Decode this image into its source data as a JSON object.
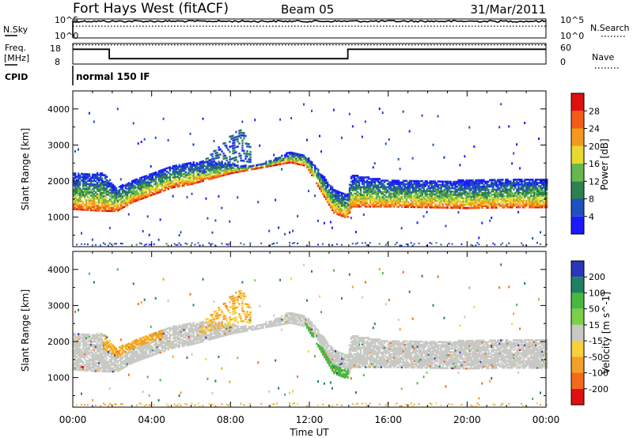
{
  "header": {
    "station": "Fort Hays West (fitACF)",
    "beam": "Beam 05",
    "date": "31/Mar/2011"
  },
  "noise_panel": {
    "left_label": "N.Sky",
    "left_ticks": [
      "10^5",
      "10^0"
    ],
    "right_label": "N.Search",
    "right_ticks": [
      "10^5",
      "10^0"
    ],
    "sky_level": 0.88,
    "search_level": 0.62
  },
  "freq_panel": {
    "left_label_1": "Freq.",
    "left_label_2": "[MHz]",
    "left_ticks": [
      "18",
      "8"
    ],
    "right_label": "Nave",
    "right_ticks": [
      "60",
      "0"
    ],
    "freq_steps": [
      {
        "t": 0.0,
        "mhz": 15.2
      },
      {
        "t": 1.85,
        "mhz": 10.6
      },
      {
        "t": 13.95,
        "mhz": 15.2
      },
      {
        "t": 24.0,
        "mhz": 15.2
      }
    ],
    "nave_level": 56
  },
  "cpid": {
    "label": "CPID",
    "program": "normal 150 IF"
  },
  "axes": {
    "ylabel": "Slant Range [km]",
    "xlabel": "Time UT",
    "y_ticks": [
      "1000",
      "2000",
      "3000",
      "4000"
    ],
    "x_ticks": [
      "00:00",
      "04:00",
      "08:00",
      "12:00",
      "16:00",
      "20:00",
      "00:00"
    ]
  },
  "power_scale": {
    "title": "Power [dB]",
    "labels": [
      "4",
      "8",
      "12",
      "16",
      "20",
      "24",
      "28"
    ],
    "colors": [
      "#1a1aff",
      "#2050c0",
      "#2e8050",
      "#66b84c",
      "#e8d830",
      "#f39a1c",
      "#f25c18",
      "#e01010"
    ]
  },
  "velocity_scale": {
    "title": "Velocity [m s^-1]",
    "labels": [
      "200",
      "100",
      "50",
      "15",
      "-15",
      "-50",
      "-100",
      "-200"
    ],
    "colors": [
      "#2638b8",
      "#1f8060",
      "#4ab840",
      "#7ad048",
      "#c8c8c4",
      "#f7d03a",
      "#f3a028",
      "#f36a18",
      "#e01010"
    ]
  },
  "chart_data": {
    "type": "heatmap",
    "xlim": [
      0,
      24
    ],
    "ylim": [
      180,
      4500
    ],
    "x_unit": "hours UT",
    "y_unit": "km",
    "power_range_db": [
      0,
      30
    ],
    "velocity_range": [
      -200,
      200
    ],
    "main_band": {
      "lower_edge_km": [
        [
          0,
          1250
        ],
        [
          1.5,
          1200
        ],
        [
          2.2,
          1200
        ],
        [
          3,
          1450
        ],
        [
          4,
          1650
        ],
        [
          5,
          1850
        ],
        [
          6,
          1950
        ],
        [
          7,
          2100
        ],
        [
          8,
          2250
        ],
        [
          9,
          2350
        ],
        [
          10,
          2450
        ],
        [
          11,
          2550
        ],
        [
          11.8,
          2450
        ],
        [
          12.5,
          1800
        ],
        [
          13.2,
          1150
        ],
        [
          13.9,
          1000
        ],
        [
          14.1,
          1320
        ],
        [
          16,
          1320
        ],
        [
          18,
          1300
        ],
        [
          20,
          1280
        ],
        [
          22,
          1300
        ],
        [
          24,
          1300
        ]
      ],
      "upper_edge_km": [
        [
          0,
          2250
        ],
        [
          1.5,
          2250
        ],
        [
          2.2,
          1850
        ],
        [
          3,
          2050
        ],
        [
          4,
          2250
        ],
        [
          5,
          2450
        ],
        [
          6,
          2550
        ],
        [
          7,
          2600
        ],
        [
          8,
          2500
        ],
        [
          9,
          2450
        ],
        [
          10,
          2600
        ],
        [
          11,
          2850
        ],
        [
          11.8,
          2750
        ],
        [
          12.5,
          2300
        ],
        [
          13.2,
          1800
        ],
        [
          13.9,
          1650
        ],
        [
          14.1,
          2200
        ],
        [
          16,
          2050
        ],
        [
          18,
          2050
        ],
        [
          20,
          2050
        ],
        [
          22,
          2100
        ],
        [
          24,
          2100
        ]
      ]
    },
    "plume": {
      "lower_edge_km": [
        [
          6.3,
          2200
        ],
        [
          7,
          2350
        ],
        [
          8,
          2500
        ],
        [
          8.5,
          2600
        ],
        [
          9,
          2550
        ]
      ],
      "upper_edge_km": [
        [
          6.3,
          2400
        ],
        [
          7,
          2800
        ],
        [
          8,
          3300
        ],
        [
          8.5,
          3500
        ],
        [
          9,
          3000
        ]
      ]
    },
    "green_arc_velocity": 40,
    "main_velocity": 0,
    "dusk_velocity": -60
  }
}
